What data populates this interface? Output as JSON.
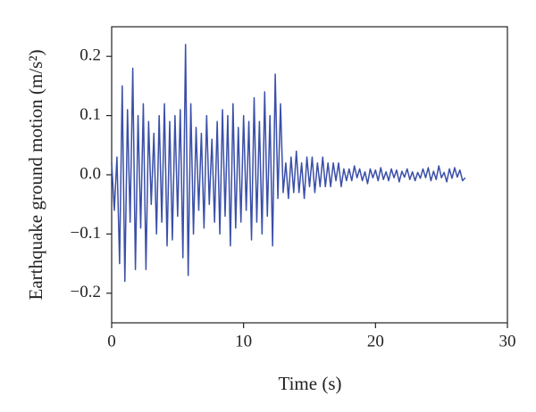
{
  "chart_data": {
    "type": "line",
    "xlabel": "Time (s)",
    "ylabel": "Earthquake ground motion (m/s²)",
    "xlim": [
      0,
      30
    ],
    "xticks": [
      0,
      10,
      20,
      30
    ],
    "ylim": [
      -0.25,
      0.25
    ],
    "yticks": [
      {
        "value": -0.2,
        "label": "−0.2"
      },
      {
        "value": -0.1,
        "label": "−0.1"
      },
      {
        "value": 0,
        "label": "0.0"
      },
      0.1,
      0.2
    ],
    "x": [
      0,
      0.2,
      0.4,
      0.6,
      0.8,
      1,
      1.2,
      1.4,
      1.6,
      1.8,
      2,
      2.2,
      2.4,
      2.6,
      2.8,
      3,
      3.2,
      3.4,
      3.6,
      3.8,
      4,
      4.2,
      4.4,
      4.6,
      4.8,
      5,
      5.2,
      5.4,
      5.6,
      5.8,
      6,
      6.2,
      6.4,
      6.6,
      6.8,
      7,
      7.2,
      7.4,
      7.6,
      7.8,
      8,
      8.2,
      8.4,
      8.6,
      8.8,
      9,
      9.2,
      9.4,
      9.6,
      9.8,
      10,
      10.2,
      10.4,
      10.6,
      10.8,
      11,
      11.2,
      11.4,
      11.6,
      11.8,
      12,
      12.2,
      12.4,
      12.6,
      12.8,
      13,
      13.2,
      13.4,
      13.6,
      13.8,
      14,
      14.2,
      14.4,
      14.6,
      14.8,
      15,
      15.2,
      15.4,
      15.6,
      15.8,
      16,
      16.2,
      16.4,
      16.6,
      16.8,
      17,
      17.2,
      17.4,
      17.6,
      17.8,
      18,
      18.2,
      18.4,
      18.6,
      18.8,
      19,
      19.2,
      19.4,
      19.6,
      19.8,
      20,
      20.2,
      20.4,
      20.6,
      20.8,
      21,
      21.2,
      21.4,
      21.6,
      21.8,
      22,
      22.2,
      22.4,
      22.6,
      22.8,
      23,
      23.2,
      23.4,
      23.6,
      23.8,
      24,
      24.2,
      24.4,
      24.6,
      24.8,
      25,
      25.2,
      25.4,
      25.6,
      25.8,
      26,
      26.2,
      26.4,
      26.6,
      26.8
    ],
    "series": [
      {
        "color": "#3a4fa8",
        "values": [
          0.02,
          -0.06,
          0.03,
          -0.15,
          0.15,
          -0.18,
          0.11,
          -0.08,
          0.18,
          -0.16,
          0.1,
          -0.09,
          0.12,
          -0.16,
          0.09,
          -0.05,
          0.07,
          -0.1,
          0.1,
          -0.08,
          0.12,
          -0.12,
          0.09,
          -0.11,
          0.1,
          -0.07,
          0.11,
          -0.14,
          0.22,
          -0.17,
          0.12,
          -0.1,
          0.08,
          -0.06,
          0.07,
          -0.09,
          0.1,
          -0.05,
          0.06,
          -0.08,
          0.09,
          -0.1,
          0.11,
          -0.07,
          0.1,
          -0.12,
          0.12,
          -0.09,
          0.08,
          -0.08,
          0.1,
          -0.06,
          0.09,
          -0.11,
          0.13,
          -0.08,
          0.09,
          -0.1,
          0.14,
          -0.07,
          0.1,
          -0.12,
          0.17,
          -0.04,
          0.12,
          -0.03,
          0.02,
          -0.04,
          0.03,
          -0.03,
          0.04,
          -0.03,
          0.02,
          -0.04,
          0.03,
          -0.02,
          0.03,
          -0.03,
          0.02,
          -0.02,
          0.03,
          -0.02,
          0.02,
          -0.02,
          0.02,
          -0.01,
          0.02,
          -0.02,
          0.01,
          -0.01,
          0.01,
          -0.01,
          0.015,
          -0.005,
          0.01,
          -0.01,
          0.005,
          -0.015,
          0.01,
          -0.005,
          0.008,
          -0.01,
          0.012,
          -0.008,
          0.005,
          -0.01,
          0.01,
          -0.005,
          0.008,
          -0.012,
          0.006,
          -0.004,
          0.01,
          -0.008,
          0.005,
          -0.01,
          0.004,
          -0.006,
          0.01,
          -0.005,
          0.012,
          -0.01,
          0.006,
          -0.008,
          0.015,
          -0.005,
          0.004,
          -0.012,
          0.01,
          -0.006,
          0.012,
          -0.004,
          0.008,
          -0.01,
          -0.005
        ]
      }
    ]
  }
}
